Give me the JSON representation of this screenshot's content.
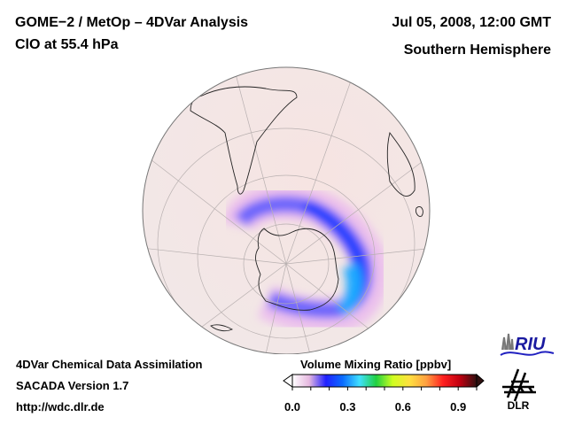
{
  "header": {
    "title_line1": "GOME−2 / MetOp – 4DVar Analysis",
    "title_line2": "ClO at 55.4 hPa",
    "datetime": "Jul 05, 2008, 12:00 GMT",
    "region": "Southern Hemisphere"
  },
  "footer": {
    "line1": "4DVar Chemical Data Assimilation",
    "line2": "SACADA Version 1.7",
    "line3": "http://wdc.dlr.de"
  },
  "colorbar": {
    "title": "Volume Mixing Ratio [ppbv]",
    "min": 0.0,
    "max": 1.0,
    "tick_labels": [
      "0.0",
      "0.3",
      "0.6",
      "0.9"
    ],
    "tick_values": [
      0.0,
      0.3,
      0.6,
      0.9
    ],
    "colors": [
      "#ffffff",
      "#e6b8e0",
      "#2020ff",
      "#0a6cff",
      "#40e0ff",
      "#20d040",
      "#d0ff20",
      "#ffe040",
      "#ffa040",
      "#ff2020",
      "#c00010",
      "#301010"
    ],
    "extend": "both"
  },
  "map": {
    "projection": "orthographic",
    "view": "south-polar",
    "background_color": "#f3e6e6",
    "feature": "polar vortex ClO ring",
    "ring_peak_value_approx": 0.35
  },
  "logos": {
    "riu": "RIU",
    "dlr": "DLR"
  }
}
